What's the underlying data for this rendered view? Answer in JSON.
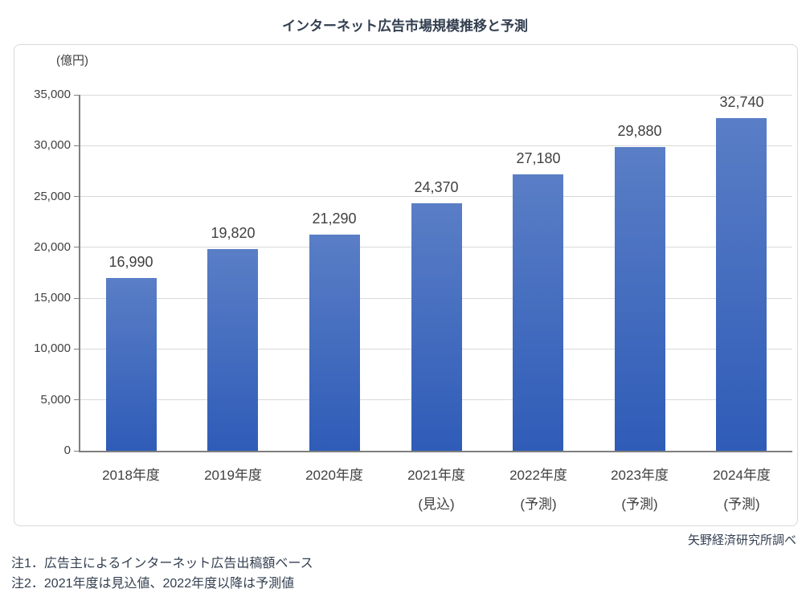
{
  "page": {
    "title": "インターネット広告市場規模推移と予測",
    "source": "矢野経済研究所調べ",
    "notes": [
      "注1．広告主によるインターネット広告出稿額ベース",
      "注2．2021年度は見込値、2022年度以降は予測値"
    ]
  },
  "chart_data": {
    "type": "bar",
    "title": "インターネット広告市場規模推移と予測",
    "unit_label": "(億円)",
    "categories": [
      "2018年度",
      "2019年度",
      "2020年度",
      "2021年度",
      "2022年度",
      "2023年度",
      "2024年度"
    ],
    "category_sublabels": [
      "",
      "",
      "",
      "(見込)",
      "(予測)",
      "(予測)",
      "(予測)"
    ],
    "values": [
      16990,
      19820,
      21290,
      24370,
      27180,
      29880,
      32740
    ],
    "value_labels": [
      "16,990",
      "19,820",
      "21,290",
      "24,370",
      "27,180",
      "29,880",
      "32,740"
    ],
    "ylabel": "(億円)",
    "xlabel": "",
    "ylim": [
      0,
      35000
    ],
    "ytick_step": 5000,
    "ytick_labels": [
      "0",
      "5,000",
      "10,000",
      "15,000",
      "20,000",
      "25,000",
      "30,000",
      "35,000"
    ],
    "grid": true,
    "legend": false,
    "bar_width_fraction": 0.5,
    "colors": {
      "bar_gradient_top": "#5a7ec6",
      "bar_gradient_bottom": "#2f5cb8",
      "gridline": "#d9d9d9",
      "axis": "#7f7f7f",
      "title_text": "#333f50",
      "tick_text": "#404040",
      "value_text": "#404040",
      "footer_text": "#333f50"
    }
  }
}
